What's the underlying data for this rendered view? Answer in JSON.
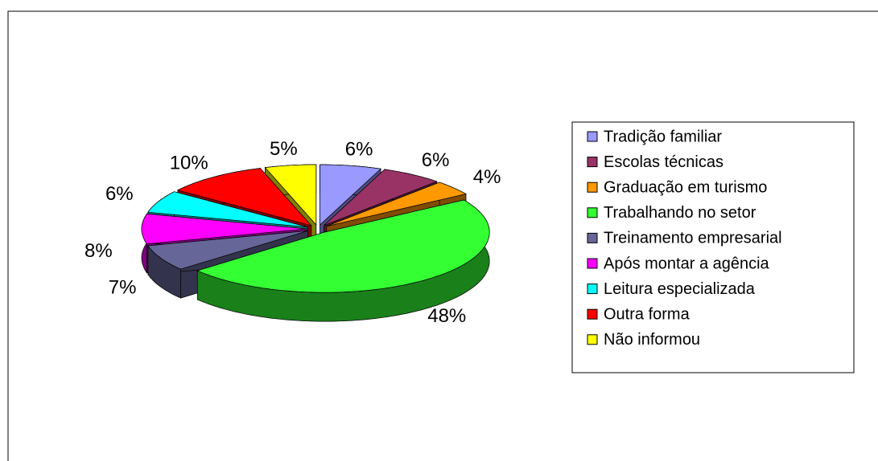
{
  "chart_data": {
    "type": "pie",
    "categories": [
      "Tradição familiar",
      "Escolas técnicas",
      "Graduação em turismo",
      "Trabalhando no setor",
      "Treinamento empresarial",
      "Após montar a agência",
      "Leitura especializada",
      "Outra forma",
      "Não informou"
    ],
    "values": [
      6,
      6,
      4,
      48,
      7,
      8,
      6,
      10,
      5
    ],
    "value_labels": [
      "6%",
      "6%",
      "4%",
      "48%",
      "7%",
      "8%",
      "6%",
      "10%",
      "5%"
    ],
    "colors": [
      "#9999ff",
      "#993366",
      "#ff9900",
      "#33ff33",
      "#666699",
      "#ff00ff",
      "#00ffff",
      "#ff0000",
      "#ffff00"
    ],
    "legend": "right"
  }
}
